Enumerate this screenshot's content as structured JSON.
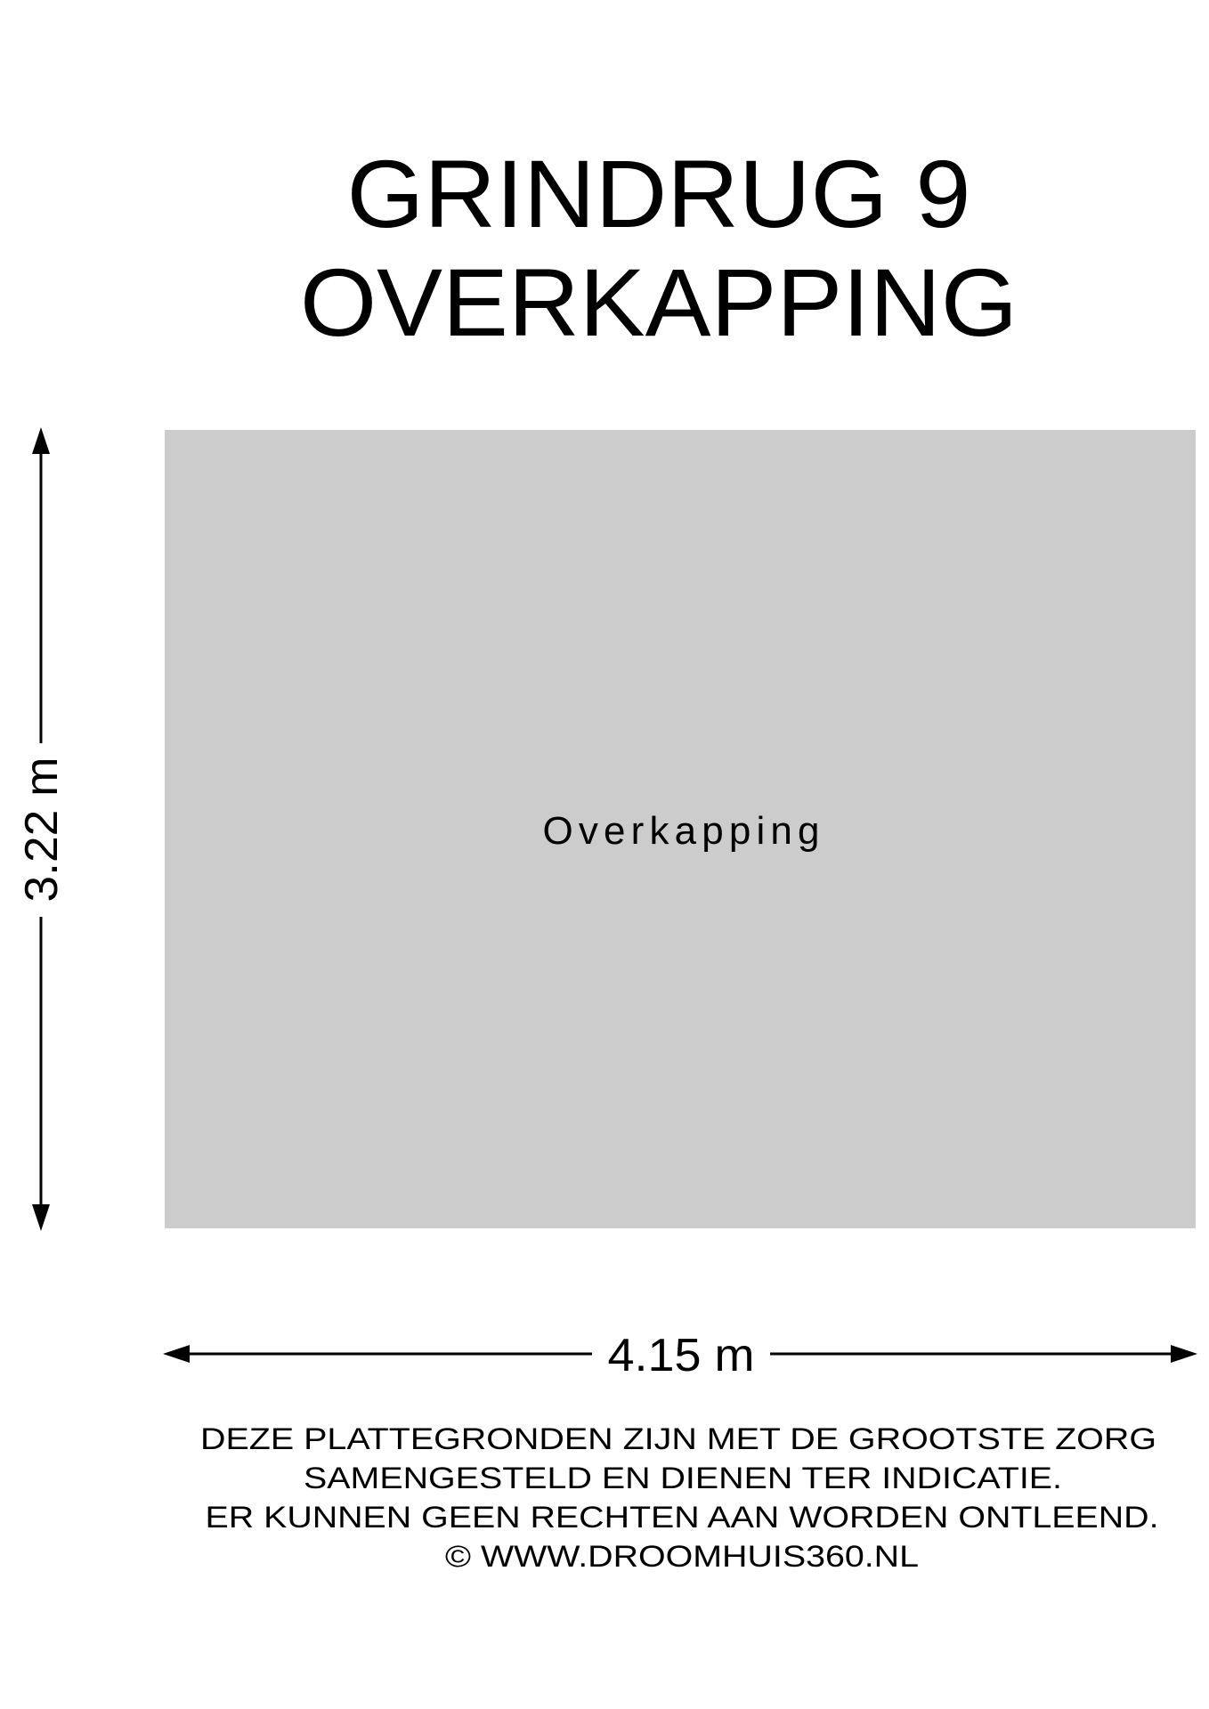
{
  "title": {
    "line1": "GRINDRUG 9",
    "line2": "OVERKAPPING"
  },
  "room": {
    "label": "Overkapping",
    "fill_color": "#cccccc"
  },
  "dimensions": {
    "height": "3.22 m",
    "width": "4.15 m"
  },
  "disclaimer": {
    "lines": [
      "DEZE PLATTEGRONDEN ZIJN MET DE GROOTSTE ZORG",
      "SAMENGESTELD EN DIENEN TER INDICATIE.",
      "ER KUNNEN GEEN RECHTEN AAN WORDEN ONTLEEND.",
      "© WWW.DROOMHUIS360.NL"
    ]
  }
}
